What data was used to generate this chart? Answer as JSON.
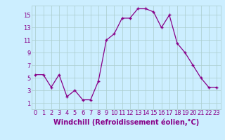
{
  "x": [
    0,
    1,
    2,
    3,
    4,
    5,
    6,
    7,
    8,
    9,
    10,
    11,
    12,
    13,
    14,
    15,
    16,
    17,
    18,
    19,
    20,
    21,
    22,
    23
  ],
  "y": [
    5.5,
    5.5,
    3.5,
    5.5,
    2.0,
    3.0,
    1.5,
    1.5,
    4.5,
    11.0,
    12.0,
    14.5,
    14.5,
    16.0,
    16.0,
    15.5,
    13.0,
    15.0,
    10.5,
    9.0,
    7.0,
    5.0,
    3.5,
    3.5
  ],
  "line_color": "#880088",
  "marker": "+",
  "marker_color": "#880088",
  "bg_color": "#cceeff",
  "grid_color": "#aacccc",
  "xlabel": "Windchill (Refroidissement éolien,°C)",
  "xlim": [
    -0.5,
    23.5
  ],
  "ylim": [
    0,
    16.5
  ],
  "xticks": [
    0,
    1,
    2,
    3,
    4,
    5,
    6,
    7,
    8,
    9,
    10,
    11,
    12,
    13,
    14,
    15,
    16,
    17,
    18,
    19,
    20,
    21,
    22,
    23
  ],
  "yticks": [
    1,
    3,
    5,
    7,
    9,
    11,
    13,
    15
  ],
  "tick_color": "#880088",
  "label_color": "#880088",
  "tick_fontsize": 6,
  "xlabel_fontsize": 7
}
